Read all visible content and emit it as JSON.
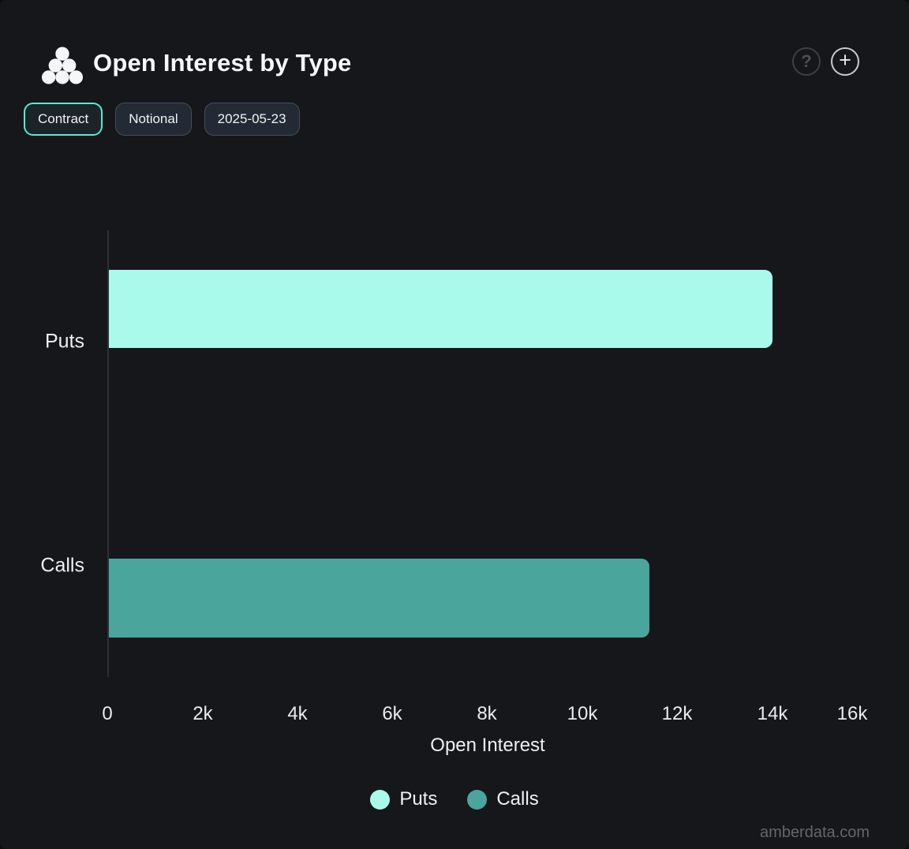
{
  "header": {
    "title": "Open Interest by Type",
    "help_label": "?",
    "add_label": "+"
  },
  "toolbar": {
    "buttons": [
      {
        "label": "Contract",
        "active": true
      },
      {
        "label": "Notional",
        "active": false
      },
      {
        "label": "2025-05-23",
        "active": false
      }
    ]
  },
  "chart_data": {
    "type": "bar",
    "orientation": "horizontal",
    "title": "Open Interest by Type",
    "categories": [
      "Puts",
      "Calls"
    ],
    "series": [
      {
        "name": "Puts",
        "value": 14000,
        "color": "#aafaec"
      },
      {
        "name": "Calls",
        "value": 11400,
        "color": "#4aa59d"
      }
    ],
    "xlabel": "Open Interest",
    "xticks": {
      "labels": [
        "0",
        "2k",
        "4k",
        "6k",
        "8k",
        "10k",
        "12k",
        "14k",
        "16k"
      ],
      "values": [
        0,
        2000,
        4000,
        6000,
        8000,
        10000,
        12000,
        14000,
        16000
      ]
    },
    "xlim": [
      0,
      16000
    ],
    "grid": false,
    "legend_position": "bottom",
    "legend": [
      {
        "label": "Puts",
        "color": "#aafaec"
      },
      {
        "label": "Calls",
        "color": "#4aa59d"
      }
    ]
  },
  "watermark": "amberdata.com",
  "colors": {
    "background": "#15171a",
    "accent_border": "#5de8d4",
    "puts": "#aafaec",
    "calls": "#4aa59d"
  }
}
